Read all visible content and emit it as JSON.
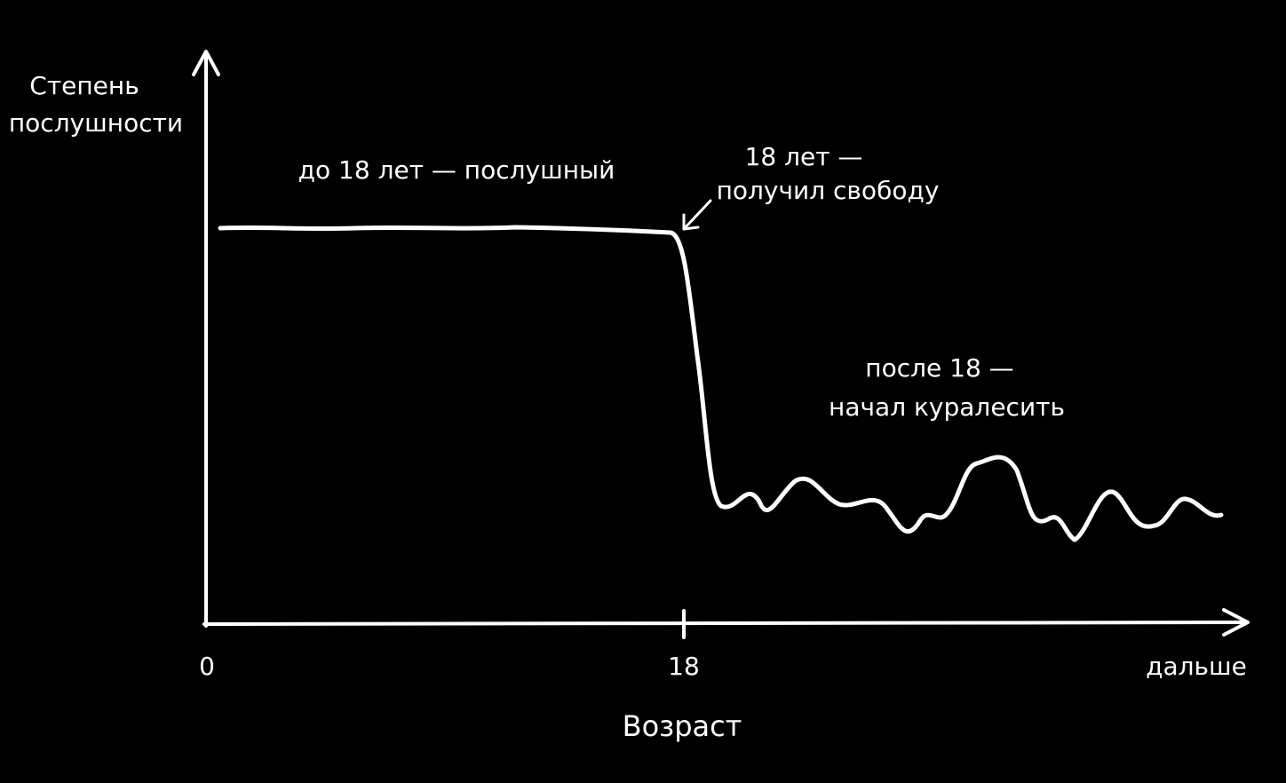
{
  "y_axis_label": [
    "Степень",
    "послушности"
  ],
  "x_axis_label": "Возраст",
  "x_ticks": [
    "0",
    "18",
    "дальше"
  ],
  "annotations": [
    {
      "lines": [
        "до 18 лет — послушный"
      ]
    },
    {
      "lines": [
        "18 лет —",
        "получил свободу"
      ]
    },
    {
      "lines": [
        "после 18 —",
        "начал куралесить"
      ]
    }
  ]
}
